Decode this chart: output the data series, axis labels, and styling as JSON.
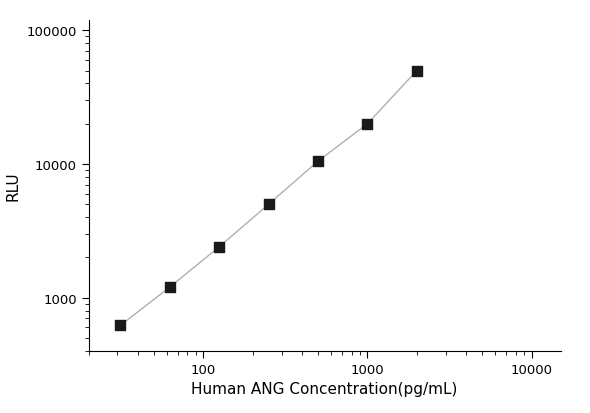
{
  "x_data": [
    31.25,
    62.5,
    125,
    250,
    500,
    1000,
    2000
  ],
  "y_data": [
    620,
    1200,
    2400,
    5000,
    10500,
    20000,
    50000
  ],
  "x_label": "Human ANG Concentration(pg/mL)",
  "y_label": "RLU",
  "x_lim": [
    20,
    15000
  ],
  "y_lim": [
    400,
    120000
  ],
  "x_ticks": [
    100,
    1000,
    10000
  ],
  "x_tick_labels": [
    "100",
    "1000",
    "10000"
  ],
  "y_ticks": [
    1000,
    10000,
    100000
  ],
  "y_tick_labels": [
    "1000",
    "10000",
    "100000"
  ],
  "line_color": "#b0b0b0",
  "marker_color": "#1a1a1a",
  "marker_size": 7,
  "line_width": 1.0,
  "background_color": "#ffffff",
  "label_fontsize": 11,
  "tick_fontsize": 9.5
}
